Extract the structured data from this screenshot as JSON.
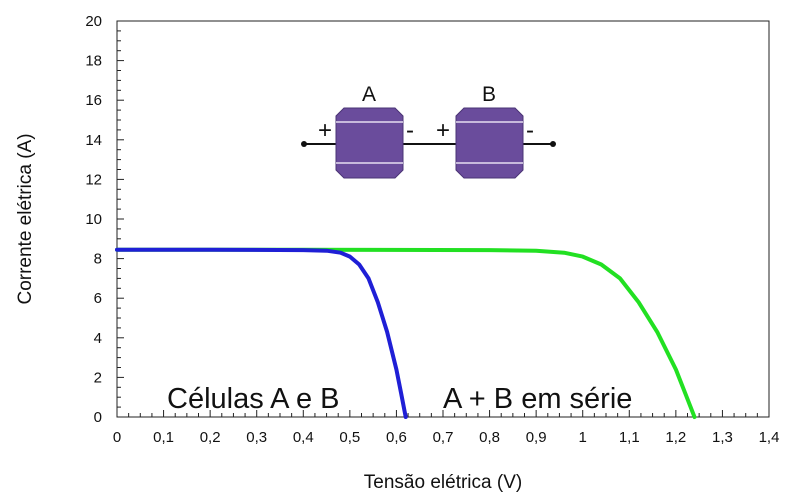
{
  "chart_data": {
    "type": "line",
    "xlabel": "Tensão elétrica (V)",
    "ylabel": "Corrente elétrica (A)",
    "xlim": [
      0,
      1.4
    ],
    "ylim": [
      0,
      20
    ],
    "x_ticks": [
      "0",
      "0,1",
      "0,2",
      "0,3",
      "0,4",
      "0,5",
      "0,6",
      "0,7",
      "0,8",
      "0,9",
      "1",
      "1,1",
      "1,2",
      "1,3",
      "1,4"
    ],
    "y_ticks": [
      "0",
      "2",
      "4",
      "6",
      "8",
      "10",
      "12",
      "14",
      "16",
      "18",
      "20"
    ],
    "series": [
      {
        "color": "#1f1fd6",
        "points": [
          [
            0,
            8.45
          ],
          [
            0.2,
            8.45
          ],
          [
            0.4,
            8.43
          ],
          [
            0.45,
            8.4
          ],
          [
            0.48,
            8.3
          ],
          [
            0.5,
            8.1
          ],
          [
            0.52,
            7.7
          ],
          [
            0.54,
            7.0
          ],
          [
            0.56,
            5.8
          ],
          [
            0.58,
            4.3
          ],
          [
            0.6,
            2.4
          ],
          [
            0.61,
            1.2
          ],
          [
            0.62,
            0
          ]
        ]
      },
      {
        "color": "#22e022",
        "points": [
          [
            0,
            8.45
          ],
          [
            0.4,
            8.45
          ],
          [
            0.8,
            8.43
          ],
          [
            0.9,
            8.4
          ],
          [
            0.96,
            8.3
          ],
          [
            1.0,
            8.1
          ],
          [
            1.04,
            7.7
          ],
          [
            1.08,
            7.0
          ],
          [
            1.12,
            5.8
          ],
          [
            1.16,
            4.3
          ],
          [
            1.2,
            2.4
          ],
          [
            1.22,
            1.2
          ],
          [
            1.24,
            0
          ]
        ]
      }
    ],
    "annotations": {
      "blue_label": "Células A e B",
      "green_label": "A + B em série"
    }
  },
  "diagram": {
    "cell_a_label": "A",
    "cell_b_label": "B",
    "plus_sign": "+",
    "minus_sign": "-",
    "cell_color": "#6a4c9c"
  }
}
